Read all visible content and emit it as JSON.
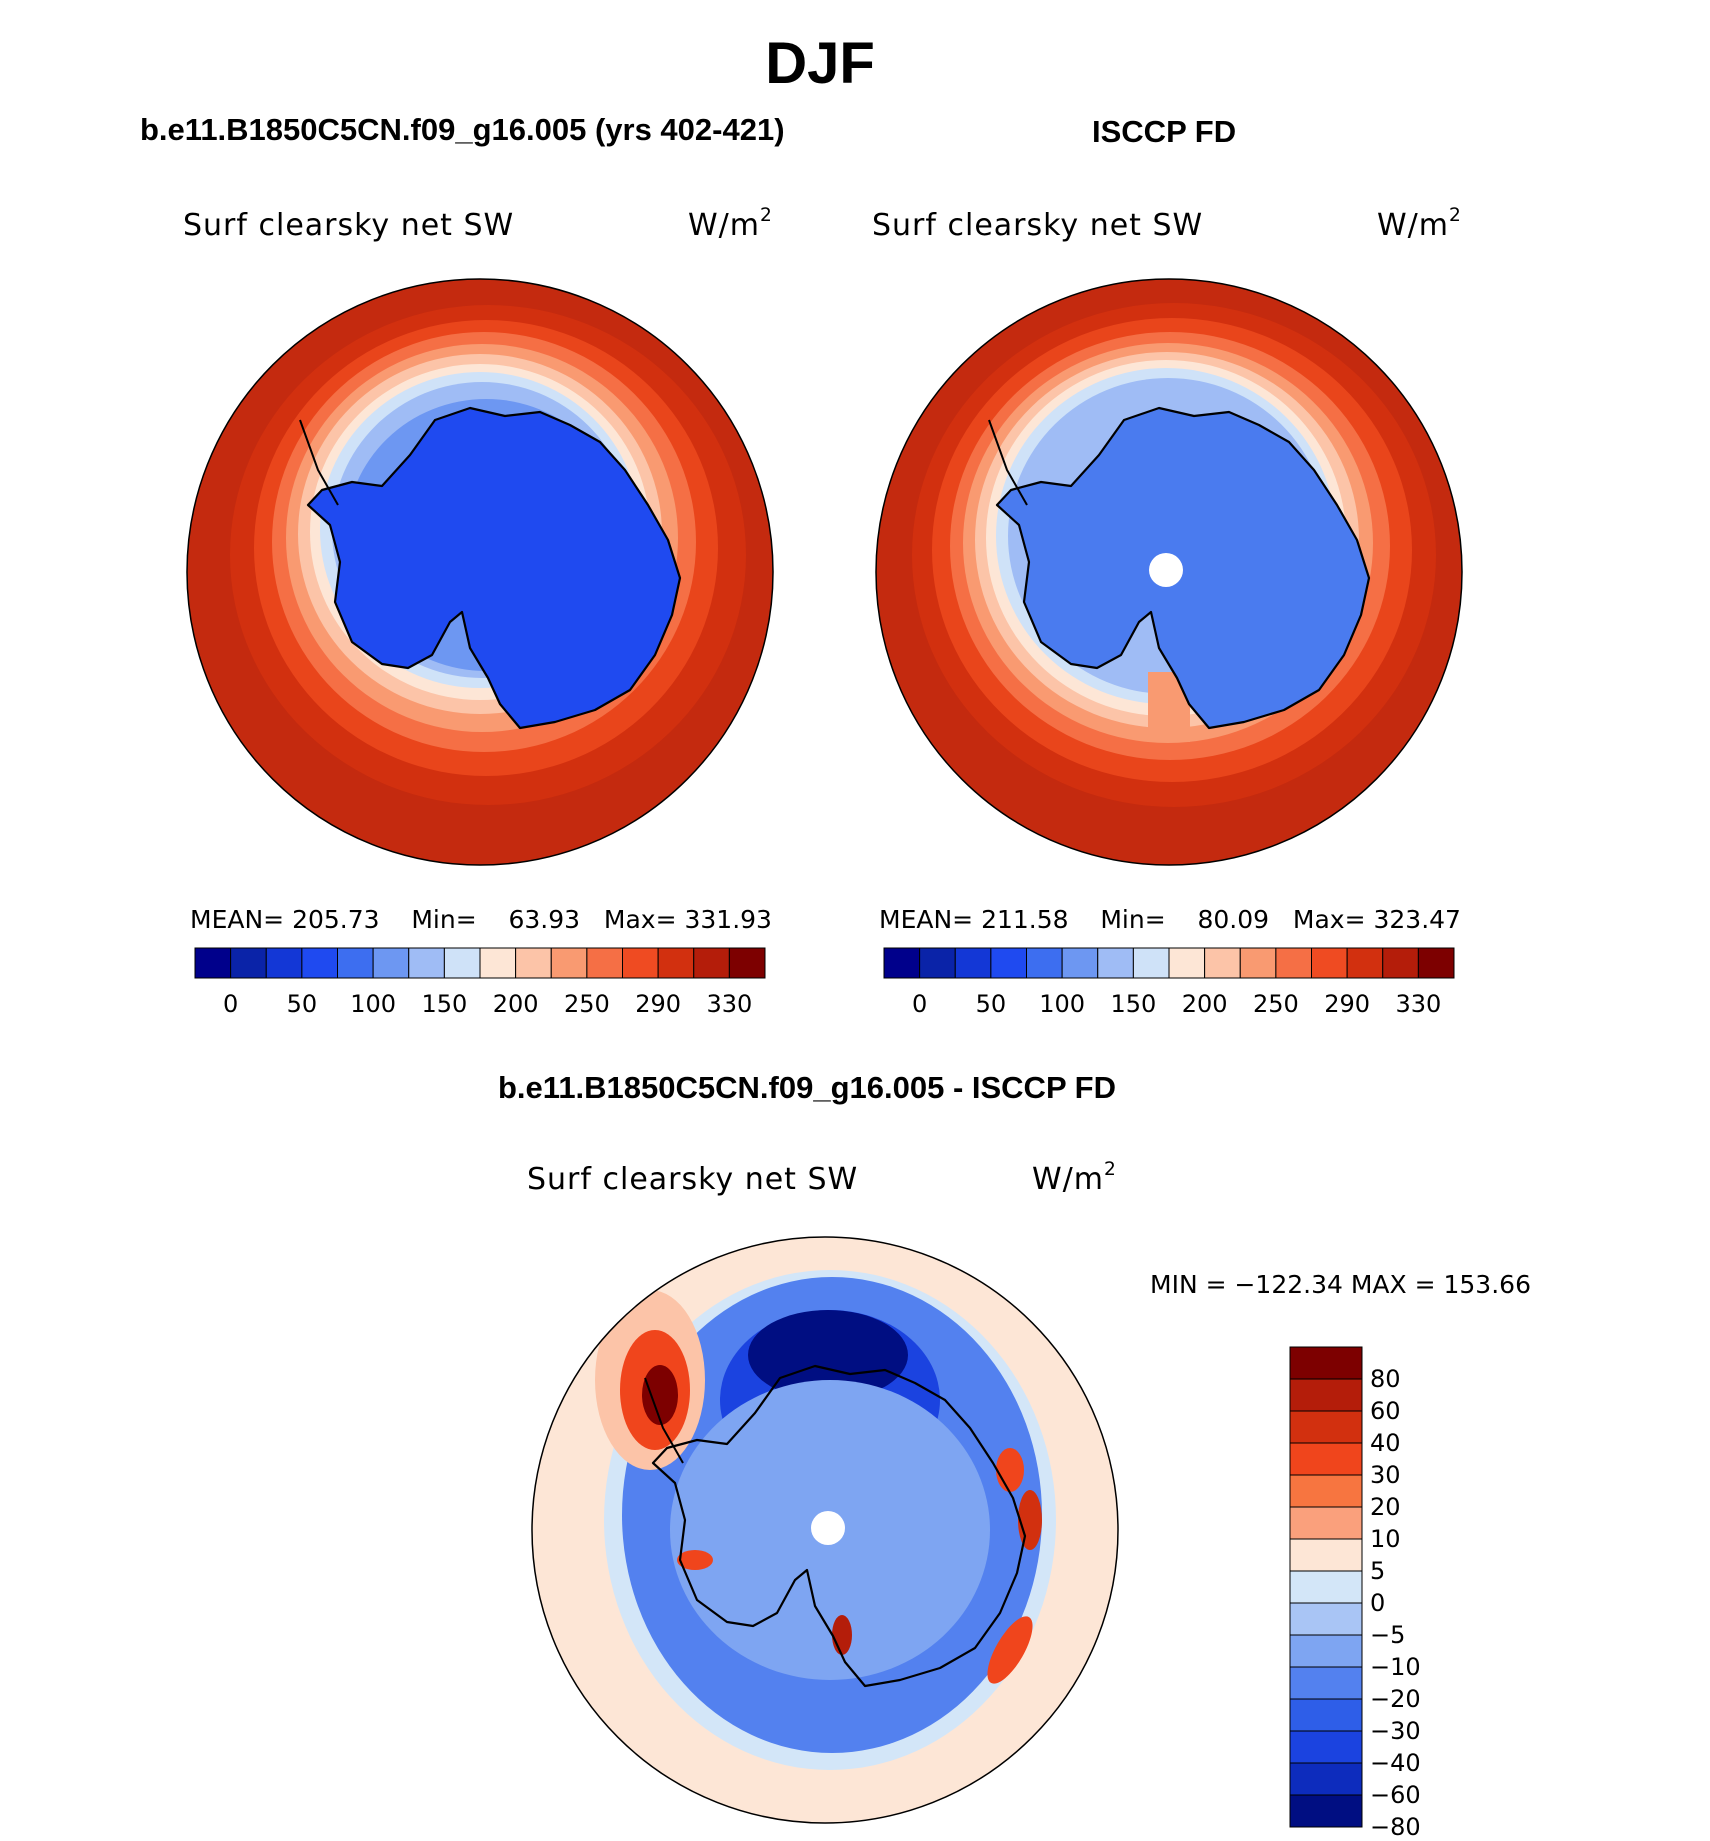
{
  "title": "DJF",
  "panels": [
    {
      "case_title": "b.e11.B1850C5CN.f09_g16.005 (yrs 402-421)",
      "variable": "Surf clearsky net SW",
      "units_base": "W/m",
      "units_exp": "2",
      "stats": {
        "mean_label": "MEAN=",
        "mean": "205.73",
        "min_label": "Min=",
        "min": "63.93",
        "max_label": "Max=",
        "max": "331.93"
      },
      "pole_gap": false
    },
    {
      "case_title": "ISCCP FD",
      "variable": "Surf clearsky net SW",
      "units_base": "W/m",
      "units_exp": "2",
      "stats": {
        "mean_label": "MEAN=",
        "mean": "211.58",
        "min_label": "Min=",
        "min": "80.09",
        "max_label": "Max=",
        "max": "323.47"
      },
      "pole_gap": true
    }
  ],
  "abs_colorbar": {
    "colors": [
      "#00008b",
      "#0a23a8",
      "#1337d6",
      "#1f4af0",
      "#3d6ef0",
      "#6d97f2",
      "#9fbcf5",
      "#cfe2f8",
      "#fde6d6",
      "#fcc4a8",
      "#f99a71",
      "#f56f45",
      "#ef4b22",
      "#d2300f",
      "#b41d0a",
      "#7d0000"
    ],
    "tick_labels": [
      "0",
      "50",
      "100",
      "150",
      "200",
      "250",
      "290",
      "330"
    ]
  },
  "diff_panel": {
    "case_title": "b.e11.B1850C5CN.f09_g16.005 - ISCCP FD",
    "variable": "Surf clearsky net SW",
    "units_base": "W/m",
    "units_exp": "2",
    "minmax_text": "MIN = −122.34  MAX = 153.66",
    "pole_gap": true
  },
  "diff_colorbar": {
    "colors": [
      "#7d0000",
      "#b41d0a",
      "#d2300f",
      "#f0451c",
      "#f77540",
      "#faa07c",
      "#fde6d6",
      "#d3e6f8",
      "#a9c5f5",
      "#7ea5f2",
      "#5381ef",
      "#2e5ee8",
      "#1b43e0",
      "#0d2cbd",
      "#000e82"
    ],
    "tick_labels": [
      "80",
      "60",
      "40",
      "30",
      "20",
      "10",
      "5",
      "0",
      "−5",
      "−10",
      "−20",
      "−30",
      "−40",
      "−60",
      "−80"
    ]
  }
}
